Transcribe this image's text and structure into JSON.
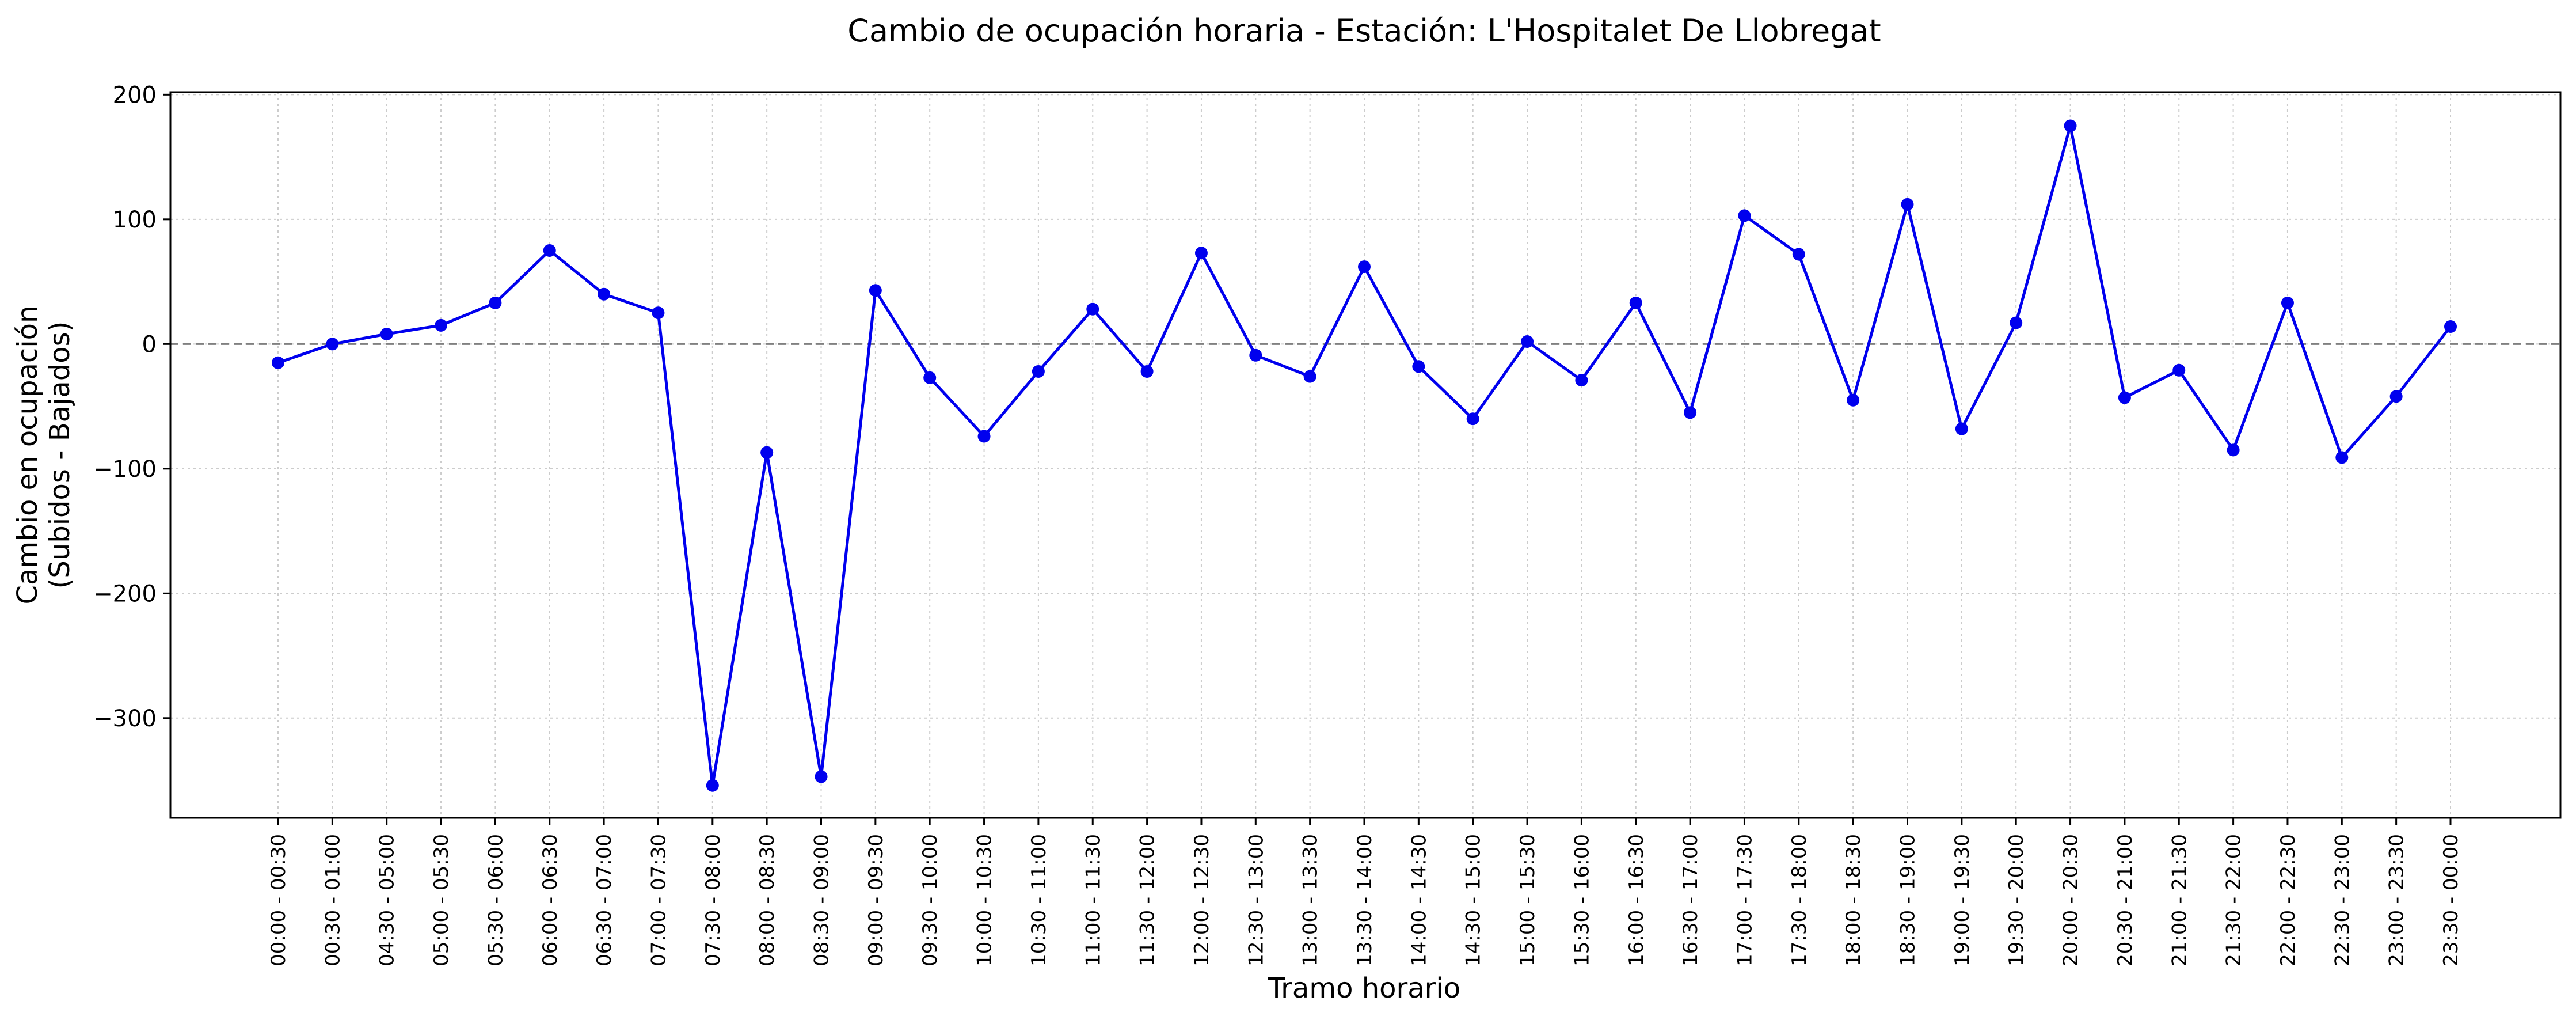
{
  "chart_data": {
    "type": "line",
    "title": "Cambio de ocupación horaria - Estación: L'Hospitalet De Llobregat",
    "xlabel": "Tramo horario",
    "ylabel_line1": "Cambio en ocupación",
    "ylabel_line2": "(Subidos - Bajados)",
    "ylim": [
      -380,
      202
    ],
    "yticks": [
      200,
      100,
      0,
      -100,
      -200,
      -300
    ],
    "ytick_labels": [
      "200",
      "100",
      "0",
      "−100",
      "−200",
      "−300"
    ],
    "grid": true,
    "zero_line": true,
    "colors": {
      "line": "#0000ee",
      "marker": "#0000ee",
      "grid": "#cccccc",
      "zero_line": "#808080"
    },
    "categories": [
      "00:00 - 00:30",
      "00:30 - 01:00",
      "04:30 - 05:00",
      "05:00 - 05:30",
      "05:30 - 06:00",
      "06:00 - 06:30",
      "06:30 - 07:00",
      "07:00 - 07:30",
      "07:30 - 08:00",
      "08:00 - 08:30",
      "08:30 - 09:00",
      "09:00 - 09:30",
      "09:30 - 10:00",
      "10:00 - 10:30",
      "10:30 - 11:00",
      "11:00 - 11:30",
      "11:30 - 12:00",
      "12:00 - 12:30",
      "12:30 - 13:00",
      "13:00 - 13:30",
      "13:30 - 14:00",
      "14:00 - 14:30",
      "14:30 - 15:00",
      "15:00 - 15:30",
      "15:30 - 16:00",
      "16:00 - 16:30",
      "16:30 - 17:00",
      "17:00 - 17:30",
      "17:30 - 18:00",
      "18:00 - 18:30",
      "18:30 - 19:00",
      "19:00 - 19:30",
      "19:30 - 20:00",
      "20:00 - 20:30",
      "20:30 - 21:00",
      "21:00 - 21:30",
      "21:30 - 22:00",
      "22:00 - 22:30",
      "22:30 - 23:00",
      "23:00 - 23:30",
      "23:30 - 00:00"
    ],
    "values": [
      -15,
      0,
      8,
      15,
      33,
      75,
      40,
      25,
      -354,
      -87,
      -347,
      43,
      -27,
      -74,
      -22,
      28,
      -22,
      73,
      -9,
      -26,
      62,
      -18,
      -60,
      2,
      -29,
      33,
      -55,
      103,
      72,
      -45,
      112,
      -68,
      17,
      175,
      -43,
      -21,
      -85,
      33,
      -91,
      -42,
      14
    ]
  }
}
